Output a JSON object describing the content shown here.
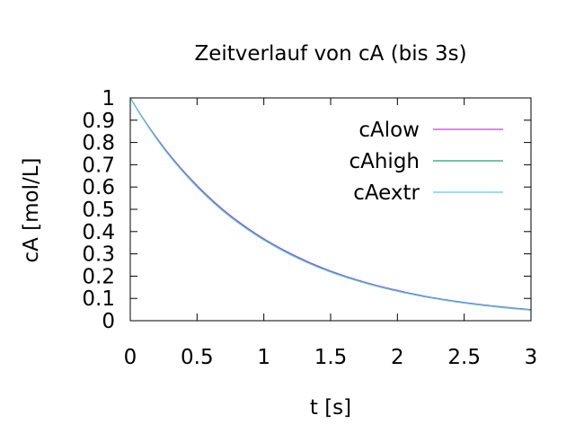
{
  "chart_data": {
    "type": "line",
    "title": "Zeitverlauf von cA (bis 3s)",
    "xlabel": "t [s]",
    "ylabel": "cA [mol/L]",
    "xlim": [
      0,
      3
    ],
    "ylim": [
      0,
      1
    ],
    "x_ticks": [
      "0",
      "0.5",
      "1",
      "1.5",
      "2",
      "2.5",
      "3"
    ],
    "y_ticks": [
      "0",
      "0.1",
      "0.2",
      "0.3",
      "0.4",
      "0.5",
      "0.6",
      "0.7",
      "0.8",
      "0.9",
      "1"
    ],
    "grid": false,
    "legend_position": "top-right",
    "x": [
      0,
      0.25,
      0.5,
      0.75,
      1,
      1.25,
      1.5,
      1.75,
      2,
      2.25,
      2.5,
      2.75,
      3
    ],
    "series": [
      {
        "name": "cAlow",
        "color": "#c040d0",
        "values": [
          1.0,
          0.779,
          0.607,
          0.472,
          0.368,
          0.287,
          0.223,
          0.174,
          0.136,
          0.105,
          0.082,
          0.064,
          0.05
        ]
      },
      {
        "name": "cAhigh",
        "color": "#20a070",
        "values": [
          1.0,
          0.775,
          0.602,
          0.467,
          0.364,
          0.283,
          0.22,
          0.171,
          0.133,
          0.103,
          0.08,
          0.062,
          0.048
        ]
      },
      {
        "name": "cAextr",
        "color": "#60c8e0",
        "values": [
          1.0,
          0.773,
          0.6,
          0.465,
          0.362,
          0.281,
          0.218,
          0.17,
          0.132,
          0.102,
          0.079,
          0.061,
          0.047
        ]
      }
    ]
  }
}
